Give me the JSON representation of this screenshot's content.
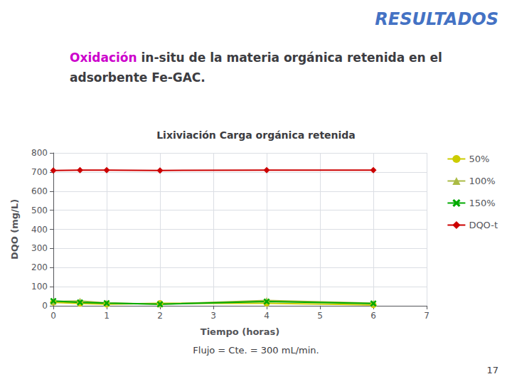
{
  "chart_data": {
    "type": "line",
    "title": "Lixiviación Carga orgánica retenida",
    "subtitle": [
      [
        {
          "text": "Oxidación",
          "color": "#CC00CC"
        },
        {
          "text": " in-situ de la materia orgánica retenida en el"
        }
      ],
      [
        {
          "text": "adsorbente Fe-GAC."
        }
      ]
    ],
    "annotations": [
      {
        "text": "RESULTADOS",
        "color": "#4472C4"
      },
      {
        "text": "Flujo = Cte. = 300 mL/min."
      },
      {
        "text": "17"
      }
    ],
    "xlabel": "Tiempo (horas)",
    "ylabel": "DQO (mg/L)",
    "xlim": [
      0,
      7
    ],
    "ylim": [
      0,
      800
    ],
    "xticks": [
      0,
      1,
      2,
      3,
      4,
      5,
      6,
      7
    ],
    "yticks": [
      0,
      100,
      200,
      300,
      400,
      500,
      600,
      700,
      800
    ],
    "grid": true,
    "legend": "right",
    "series": [
      {
        "name": "50%",
        "color": "#CCCC00",
        "marker": "circle",
        "x": [
          0,
          0.5,
          1,
          2,
          4,
          6
        ],
        "values": [
          18,
          12,
          8,
          13,
          13,
          5
        ]
      },
      {
        "name": "100%",
        "color": "#AABB44",
        "marker": "triangle",
        "x": [
          0,
          0.5,
          1,
          2,
          4,
          6
        ],
        "values": [
          22,
          25,
          15,
          8,
          28,
          13
        ]
      },
      {
        "name": "150%",
        "color": "#00AA00",
        "marker": "x",
        "x": [
          0,
          0.5,
          1,
          2,
          4,
          6
        ],
        "values": [
          25,
          18,
          14,
          8,
          22,
          12
        ]
      },
      {
        "name": "DQO-t",
        "color": "#CC0000",
        "marker": "diamond",
        "x": [
          0,
          0.5,
          1,
          2,
          4,
          6
        ],
        "values": [
          708,
          710,
          710,
          708,
          710,
          710
        ]
      }
    ]
  }
}
